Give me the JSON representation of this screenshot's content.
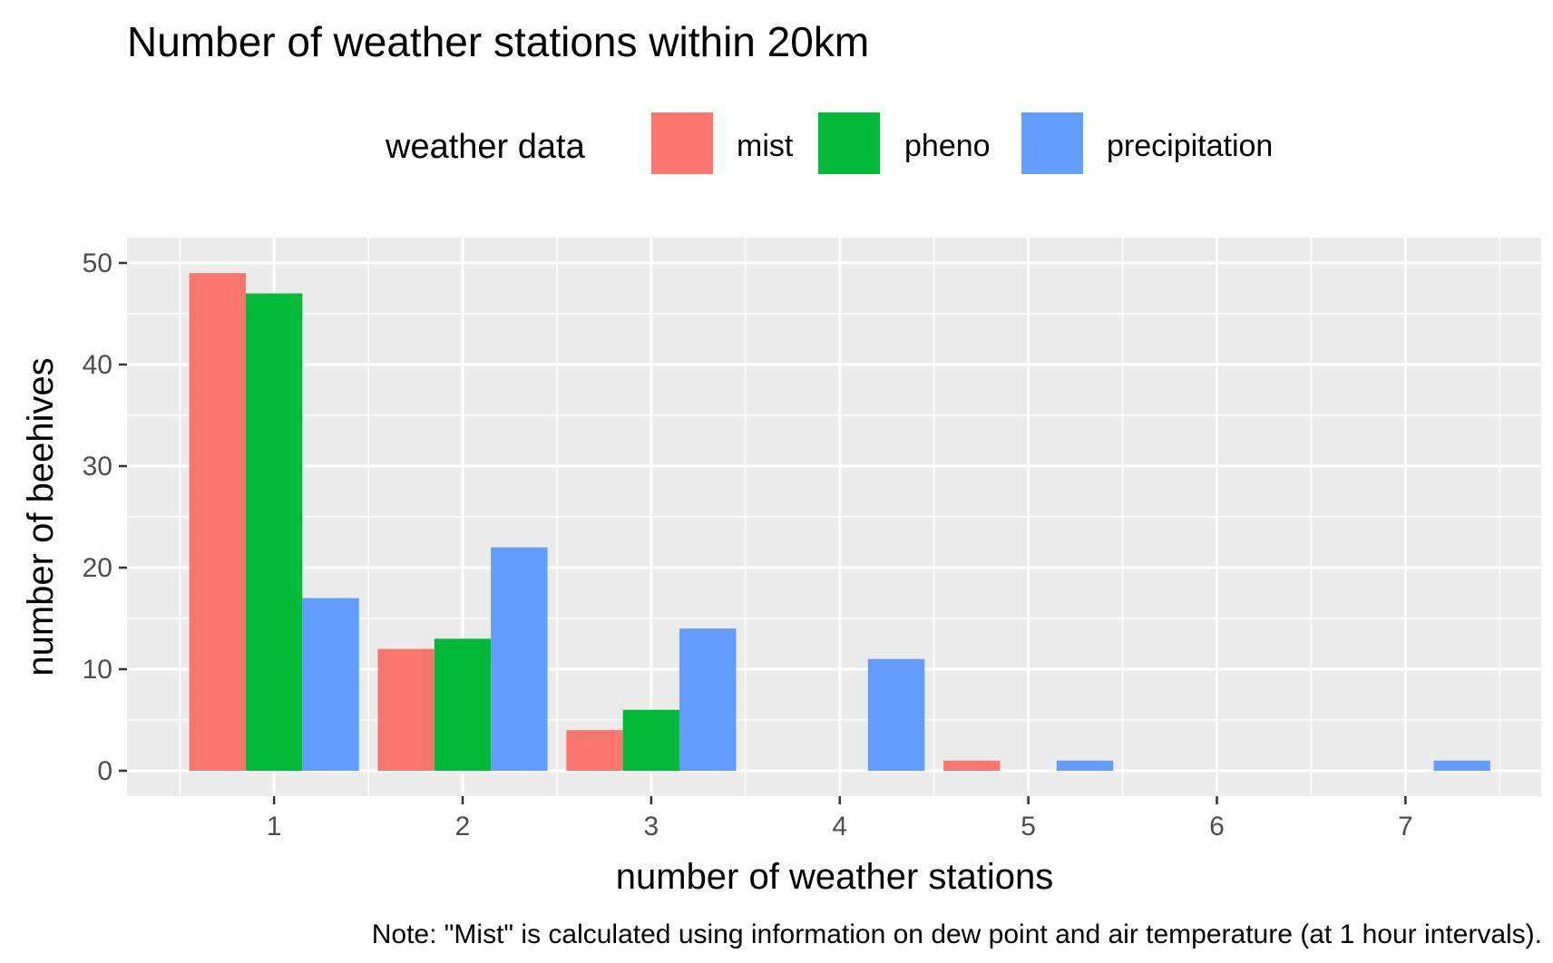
{
  "chart_data": {
    "type": "bar",
    "title": "Number of weather stations within 20km",
    "xlabel": "number of weather stations",
    "ylabel": "number of beehives",
    "caption": "Note: \"Mist\" is calculated using information on dew point and air temperature (at 1 hour intervals).",
    "legend": {
      "title": "weather data",
      "position": "top"
    },
    "categories": [
      "1",
      "2",
      "3",
      "4",
      "5",
      "6",
      "7"
    ],
    "series": [
      {
        "name": "mist",
        "color": "#F8766D",
        "values": [
          49,
          12,
          4,
          0,
          1,
          0,
          0
        ]
      },
      {
        "name": "pheno",
        "color": "#00BA38",
        "values": [
          47,
          13,
          6,
          0,
          0,
          0,
          0
        ]
      },
      {
        "name": "precipitation",
        "color": "#619CFF",
        "values": [
          17,
          22,
          14,
          11,
          1,
          0,
          1
        ]
      }
    ],
    "y_ticks": [
      0,
      10,
      20,
      30,
      40,
      50
    ],
    "xlim": [
      0.22,
      7.72
    ],
    "ylim": [
      -2.5,
      52.5
    ],
    "grid": true,
    "panel_background": "#EBEBEB"
  }
}
